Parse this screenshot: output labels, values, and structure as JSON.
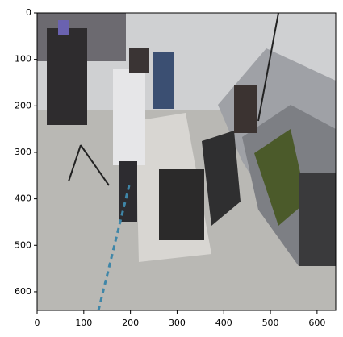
{
  "chart_data": {
    "type": "image",
    "xlim": [
      0,
      640
    ],
    "ylim": [
      640,
      0
    ],
    "xticks": [
      0,
      100,
      200,
      300,
      400,
      500,
      600
    ],
    "yticks": [
      0,
      100,
      200,
      300,
      400,
      500,
      600
    ]
  }
}
